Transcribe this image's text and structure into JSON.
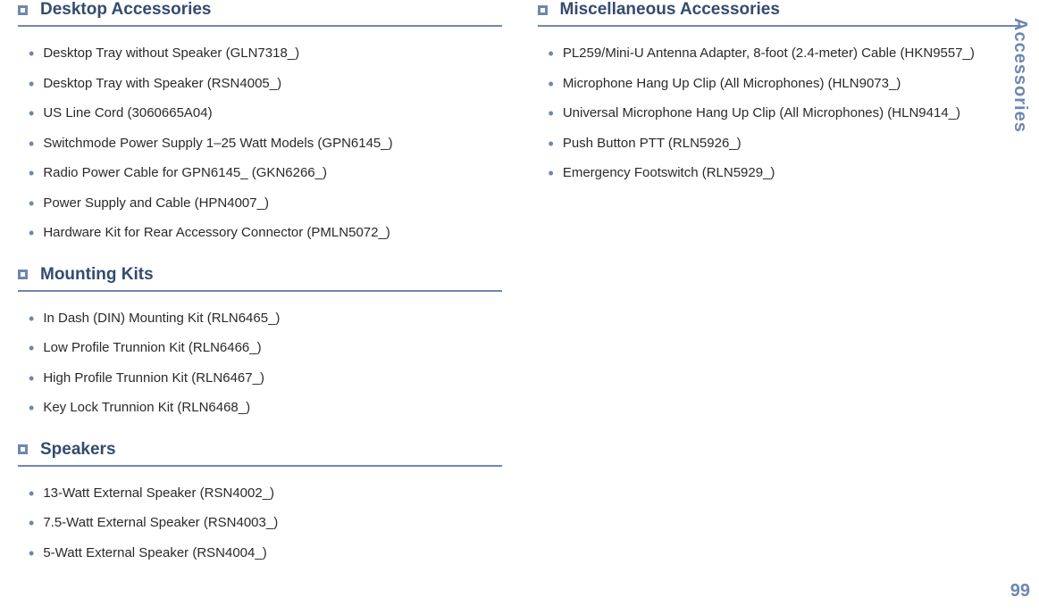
{
  "sidebar_label": "Accessories",
  "page_number": "99",
  "colors": {
    "accent": "#6e87af",
    "heading": "#334b6f",
    "text": "#2a2a2a",
    "background": "#ffffff"
  },
  "left_column": {
    "sections": [
      {
        "title": "Desktop Accessories",
        "items": [
          "Desktop Tray without Speaker (GLN7318_)",
          "Desktop Tray with Speaker (RSN4005_)",
          "US Line Cord (3060665A04)",
          "Switchmode Power Supply 1–25 Watt Models (GPN6145_)",
          "Radio Power Cable for GPN6145_ (GKN6266_)",
          "Power Supply and Cable (HPN4007_)",
          "Hardware Kit for Rear Accessory Connector (PMLN5072_)"
        ]
      },
      {
        "title": "Mounting Kits",
        "items": [
          "In Dash (DIN) Mounting Kit (RLN6465_)",
          "Low Profile Trunnion Kit (RLN6466_)",
          "High Profile Trunnion Kit (RLN6467_)",
          "Key Lock Trunnion Kit (RLN6468_)"
        ]
      },
      {
        "title": "Speakers",
        "items": [
          "13-Watt External Speaker (RSN4002_)",
          "7.5-Watt External Speaker (RSN4003_)",
          "5-Watt External Speaker (RSN4004_)"
        ]
      }
    ]
  },
  "right_column": {
    "sections": [
      {
        "title": "Miscellaneous Accessories",
        "items": [
          "PL259/Mini-U Antenna Adapter, 8-foot (2.4-meter) Cable (HKN9557_)",
          "Microphone Hang Up Clip (All Microphones) (HLN9073_)",
          "Universal Microphone Hang Up Clip (All Microphones) (HLN9414_)",
          "Push Button PTT (RLN5926_)",
          "Emergency Footswitch (RLN5929_)"
        ]
      }
    ]
  }
}
